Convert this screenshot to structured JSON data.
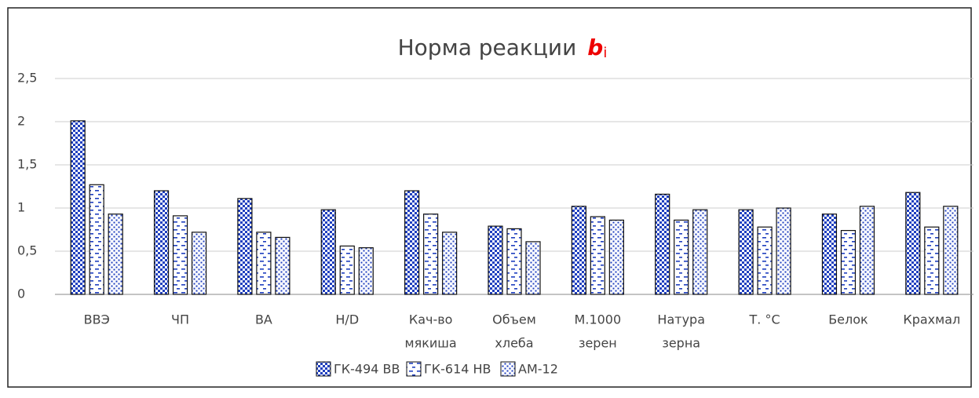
{
  "chart_data": {
    "type": "bar",
    "title": "Норма реакции",
    "title_variable": "b",
    "title_subscript": "i",
    "categories": [
      [
        "ВВЭ"
      ],
      [
        "ЧП"
      ],
      [
        "ВА"
      ],
      [
        "H/D"
      ],
      [
        "Кач-во",
        "мякиша"
      ],
      [
        "Объем",
        "хлеба"
      ],
      [
        "М.1000",
        "зерен"
      ],
      [
        "Натура",
        "зерна"
      ],
      [
        "Т. °С"
      ],
      [
        "Белок"
      ],
      [
        "Крахмал"
      ]
    ],
    "series": [
      {
        "name": "ГК-494 ВВ",
        "color": "#1f3fbf",
        "values": [
          2.01,
          1.2,
          1.11,
          0.98,
          1.2,
          0.79,
          1.02,
          1.16,
          0.98,
          0.93,
          1.18
        ]
      },
      {
        "name": "ГК-614 НВ",
        "color": "#1f3fbf",
        "values": [
          1.27,
          0.91,
          0.72,
          0.56,
          0.93,
          0.76,
          0.9,
          0.86,
          0.78,
          0.74,
          0.78
        ]
      },
      {
        "name": "АМ-12",
        "color": "#1f3fbf",
        "values": [
          0.93,
          0.72,
          0.66,
          0.54,
          0.72,
          0.61,
          0.86,
          0.98,
          1.0,
          1.02,
          1.02
        ]
      }
    ],
    "ylim": [
      0,
      2.5
    ],
    "yticks": [
      0,
      {
        "value": 0.5,
        "label": "0,5"
      },
      1,
      {
        "value": 1.5,
        "label": "1,5"
      },
      2,
      {
        "value": 2.5,
        "label": "2,5"
      }
    ],
    "grid": true
  }
}
